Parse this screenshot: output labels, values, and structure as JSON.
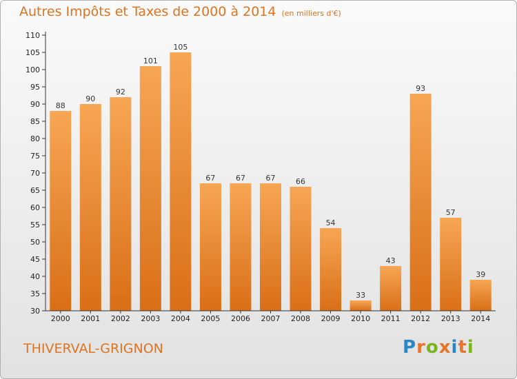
{
  "title": "Autres Impôts et Taxes de 2000 à 2014",
  "subtitle": "(en milliers d'€)",
  "commune": "THIVERVAL-GRIGNON",
  "logo": {
    "letters": [
      "P",
      "r",
      "o",
      "x",
      "i",
      "t",
      "i"
    ],
    "colors": [
      "#2b86c5",
      "#e8732a",
      "#7ab51d",
      "#e8732a",
      "#2b86c5",
      "#e8732a",
      "#7ab51d"
    ]
  },
  "colors": {
    "bar_top": "#f7a654",
    "bar_bottom": "#d96f17",
    "title": "#e0731e"
  },
  "chart_data": {
    "type": "bar",
    "categories": [
      "2000",
      "2001",
      "2002",
      "2003",
      "2004",
      "2005",
      "2006",
      "2007",
      "2008",
      "2009",
      "2010",
      "2011",
      "2012",
      "2013",
      "2014"
    ],
    "values": [
      88,
      90,
      92,
      101,
      105,
      67,
      67,
      67,
      66,
      54,
      33,
      43,
      93,
      57,
      39
    ],
    "yticks": [
      30,
      35,
      40,
      45,
      50,
      55,
      60,
      65,
      70,
      75,
      80,
      85,
      90,
      95,
      100,
      105,
      110
    ],
    "ylim": [
      30,
      110
    ],
    "grid": false
  }
}
